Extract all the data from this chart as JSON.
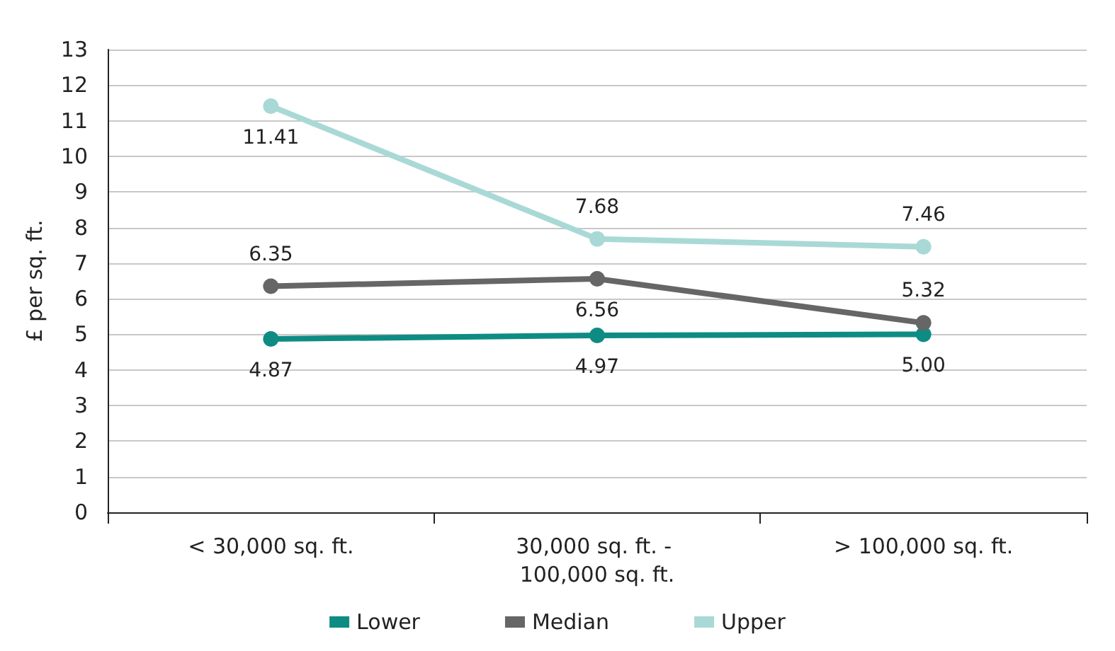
{
  "chart_data": {
    "type": "line",
    "ylabel": "£ per sq. ft.",
    "categories": [
      "< 30,000 sq. ft.",
      "30,000 sq. ft. - 100,000 sq. ft.",
      "> 100,000 sq. ft."
    ],
    "series": [
      {
        "name": "Lower",
        "color": "#0e8c84",
        "values": [
          4.87,
          4.97,
          5.0
        ],
        "value_labels": [
          "4.87",
          "4.97",
          "5.00"
        ]
      },
      {
        "name": "Median",
        "color": "#666666",
        "values": [
          6.35,
          6.56,
          5.32
        ],
        "value_labels": [
          "6.35",
          "6.56",
          "5.32"
        ]
      },
      {
        "name": "Upper",
        "color": "#a9d9d6",
        "values": [
          11.41,
          7.68,
          7.46
        ],
        "value_labels": [
          "11.41",
          "7.68",
          "7.46"
        ]
      }
    ],
    "ylim": [
      0,
      13
    ],
    "yticks": [
      0,
      1,
      2,
      3,
      4,
      5,
      6,
      7,
      8,
      9,
      10,
      11,
      12,
      13
    ],
    "grid": "y",
    "legend": "bottom",
    "marker": "circle",
    "line_style": "solid"
  }
}
